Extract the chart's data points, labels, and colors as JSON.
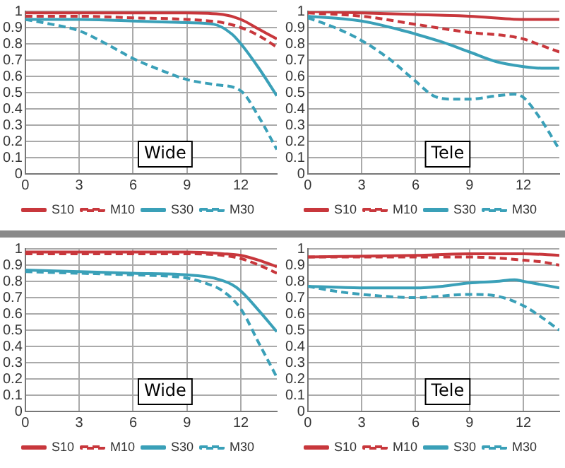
{
  "chart_data": [
    {
      "type": "line",
      "annotations": [
        "Wide"
      ],
      "xlim": [
        0,
        14
      ],
      "xticks": [
        0,
        3,
        6,
        9,
        12
      ],
      "ylim": [
        0,
        1
      ],
      "yticks": [
        0,
        0.1,
        0.2,
        0.3,
        0.4,
        0.5,
        0.6,
        0.7,
        0.8,
        0.9,
        1
      ],
      "grid": true,
      "legend": "bottom",
      "marker": "none",
      "series": [
        {
          "name": "S10",
          "color": "#c8373c",
          "line_style": "solid",
          "x": [
            0,
            3,
            6,
            9,
            11,
            12,
            13,
            14
          ],
          "values": [
            0.99,
            0.99,
            0.99,
            0.99,
            0.98,
            0.95,
            0.89,
            0.83
          ]
        },
        {
          "name": "M10",
          "color": "#c8373c",
          "line_style": "dashed",
          "x": [
            0,
            3,
            6,
            9,
            11,
            12,
            13,
            14
          ],
          "values": [
            0.97,
            0.97,
            0.96,
            0.95,
            0.93,
            0.9,
            0.85,
            0.78
          ]
        },
        {
          "name": "S30",
          "color": "#3aa0b8",
          "line_style": "solid",
          "x": [
            0,
            3,
            6,
            9,
            10.5,
            11.5,
            12,
            13,
            14
          ],
          "values": [
            0.95,
            0.95,
            0.94,
            0.93,
            0.92,
            0.86,
            0.8,
            0.65,
            0.48
          ]
        },
        {
          "name": "M30",
          "color": "#3aa0b8",
          "line_style": "dashed",
          "x": [
            0,
            1,
            3,
            4.5,
            6,
            7.5,
            9,
            10.5,
            12,
            13,
            14
          ],
          "values": [
            0.95,
            0.93,
            0.88,
            0.8,
            0.71,
            0.64,
            0.58,
            0.55,
            0.51,
            0.35,
            0.15
          ]
        }
      ]
    },
    {
      "type": "line",
      "annotations": [
        "Tele"
      ],
      "xlim": [
        0,
        14
      ],
      "xticks": [
        0,
        3,
        6,
        9,
        12
      ],
      "ylim": [
        0,
        1
      ],
      "yticks": [
        0,
        0.1,
        0.2,
        0.3,
        0.4,
        0.5,
        0.6,
        0.7,
        0.8,
        0.9,
        1
      ],
      "grid": true,
      "legend": "bottom",
      "marker": "none",
      "series": [
        {
          "name": "S10",
          "color": "#c8373c",
          "line_style": "solid",
          "x": [
            0,
            3,
            6,
            9,
            12,
            14
          ],
          "values": [
            1,
            0.99,
            0.98,
            0.97,
            0.95,
            0.95
          ]
        },
        {
          "name": "M10",
          "color": "#c8373c",
          "line_style": "dashed",
          "x": [
            0,
            3,
            6,
            9,
            11,
            12,
            13,
            14
          ],
          "values": [
            0.99,
            0.97,
            0.92,
            0.87,
            0.85,
            0.83,
            0.79,
            0.75
          ]
        },
        {
          "name": "S30",
          "color": "#3aa0b8",
          "line_style": "solid",
          "x": [
            0,
            3,
            5,
            6,
            7.5,
            9,
            10.5,
            12,
            13,
            14
          ],
          "values": [
            0.97,
            0.94,
            0.89,
            0.86,
            0.81,
            0.75,
            0.69,
            0.66,
            0.65,
            0.65
          ]
        },
        {
          "name": "M30",
          "color": "#3aa0b8",
          "line_style": "dashed",
          "x": [
            0,
            1.5,
            3,
            4.5,
            6,
            7,
            8,
            9,
            10.5,
            11.5,
            12,
            13,
            14
          ],
          "values": [
            0.96,
            0.9,
            0.82,
            0.71,
            0.57,
            0.48,
            0.46,
            0.46,
            0.48,
            0.49,
            0.47,
            0.33,
            0.15
          ]
        }
      ]
    },
    {
      "type": "line",
      "annotations": [
        "Wide"
      ],
      "xlim": [
        0,
        14
      ],
      "xticks": [
        0,
        3,
        6,
        9,
        12
      ],
      "ylim": [
        0,
        1
      ],
      "yticks": [
        0,
        0.1,
        0.2,
        0.3,
        0.4,
        0.5,
        0.6,
        0.7,
        0.8,
        0.9,
        1
      ],
      "grid": true,
      "legend": "bottom",
      "marker": "none",
      "series": [
        {
          "name": "S10",
          "color": "#c8373c",
          "line_style": "solid",
          "x": [
            0,
            6,
            9,
            11,
            12,
            13,
            14
          ],
          "values": [
            0.98,
            0.98,
            0.98,
            0.97,
            0.96,
            0.93,
            0.89
          ]
        },
        {
          "name": "M10",
          "color": "#c8373c",
          "line_style": "dashed",
          "x": [
            0,
            6,
            9,
            11,
            12,
            13,
            14
          ],
          "values": [
            0.97,
            0.97,
            0.97,
            0.96,
            0.94,
            0.9,
            0.85
          ]
        },
        {
          "name": "S30",
          "color": "#3aa0b8",
          "line_style": "solid",
          "x": [
            0,
            3,
            6,
            9,
            10.5,
            11.5,
            12,
            13,
            14
          ],
          "values": [
            0.87,
            0.86,
            0.85,
            0.84,
            0.82,
            0.78,
            0.74,
            0.62,
            0.49
          ]
        },
        {
          "name": "M30",
          "color": "#3aa0b8",
          "line_style": "dashed",
          "x": [
            0,
            3,
            6,
            9,
            10,
            11,
            12,
            13,
            14
          ],
          "values": [
            0.86,
            0.85,
            0.84,
            0.82,
            0.79,
            0.74,
            0.63,
            0.42,
            0.21
          ]
        }
      ]
    },
    {
      "type": "line",
      "annotations": [
        "Tele"
      ],
      "xlim": [
        0,
        14
      ],
      "xticks": [
        0,
        3,
        6,
        9,
        12
      ],
      "ylim": [
        0,
        1
      ],
      "yticks": [
        0,
        0.1,
        0.2,
        0.3,
        0.4,
        0.5,
        0.6,
        0.7,
        0.8,
        0.9,
        1
      ],
      "grid": true,
      "legend": "bottom",
      "marker": "none",
      "series": [
        {
          "name": "S10",
          "color": "#c8373c",
          "line_style": "solid",
          "x": [
            0,
            6,
            9,
            12,
            14
          ],
          "values": [
            0.95,
            0.96,
            0.97,
            0.97,
            0.96
          ]
        },
        {
          "name": "M10",
          "color": "#c8373c",
          "line_style": "dashed",
          "x": [
            0,
            3,
            6,
            9,
            11,
            12,
            13,
            14
          ],
          "values": [
            0.95,
            0.95,
            0.95,
            0.95,
            0.94,
            0.93,
            0.92,
            0.9
          ]
        },
        {
          "name": "S30",
          "color": "#3aa0b8",
          "line_style": "solid",
          "x": [
            0,
            3,
            6,
            7.5,
            9,
            10.5,
            11.5,
            12,
            13,
            14
          ],
          "values": [
            0.77,
            0.76,
            0.76,
            0.77,
            0.79,
            0.8,
            0.81,
            0.8,
            0.78,
            0.76
          ]
        },
        {
          "name": "M30",
          "color": "#3aa0b8",
          "line_style": "dashed",
          "x": [
            0,
            1.5,
            3,
            6,
            9,
            10.5,
            12,
            13,
            14
          ],
          "values": [
            0.77,
            0.74,
            0.72,
            0.7,
            0.72,
            0.71,
            0.65,
            0.58,
            0.5
          ]
        }
      ]
    }
  ]
}
